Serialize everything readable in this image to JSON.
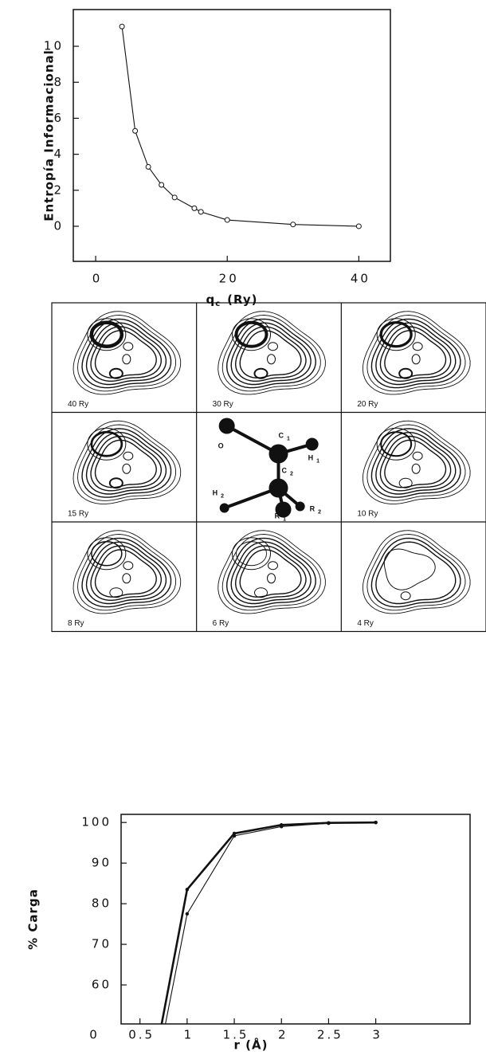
{
  "chart_data": [
    {
      "type": "line",
      "ylabel": "Entropía  Informacional",
      "xlabel": "q",
      "xlabel_sub": "c",
      "xlabel_unit": "(Ry)",
      "x": [
        4,
        6,
        8,
        10,
        12,
        15,
        16,
        20,
        30,
        40
      ],
      "values": [
        11.1,
        5.3,
        3.3,
        2.3,
        1.6,
        1.0,
        0.8,
        0.35,
        0.1,
        0.0
      ],
      "color": "#111",
      "xlim": [
        -3.4,
        44.8
      ],
      "ylim": [
        -1.95,
        12.04
      ],
      "xticks": [
        0,
        20,
        40
      ],
      "yticks": [
        0,
        2,
        4,
        6,
        8,
        10
      ]
    },
    {
      "type": "line",
      "ylabel": "% Carga",
      "xlabel": "r  (Å)",
      "series": [
        {
          "color": "#111",
          "x": [
            0.73,
            1,
            1.5,
            2,
            2.5,
            3
          ],
          "values": [
            50.4,
            83.5,
            97.3,
            99.4,
            99.9,
            100
          ]
        },
        {
          "color": "#111",
          "x": [
            0.77,
            1,
            1.5,
            2,
            2.5,
            3
          ],
          "values": [
            50.4,
            77.5,
            96.7,
            99.0,
            99.8,
            100
          ]
        }
      ],
      "xlim": [
        0.3,
        4.0
      ],
      "ylim": [
        50.4,
        102
      ],
      "xticks": [
        0,
        0.5,
        1,
        1.5,
        2,
        2.5,
        3
      ],
      "yticks": [
        60,
        70,
        80,
        90,
        100
      ]
    }
  ],
  "panels": {
    "labels": [
      "40 Ry",
      "30 Ry",
      "20 Ry",
      "15 Ry",
      "10 Ry",
      "8 Ry",
      "6 Ry",
      "4 Ry"
    ],
    "molecule": [
      {
        "label": "O",
        "sub": ""
      },
      {
        "label": "C",
        "sub": "1"
      },
      {
        "label": "H",
        "sub": "1"
      },
      {
        "label": "C",
        "sub": "2"
      },
      {
        "label": "H",
        "sub": "2"
      },
      {
        "label": "R",
        "sub": "1"
      },
      {
        "label": "R",
        "sub": "2"
      }
    ]
  }
}
